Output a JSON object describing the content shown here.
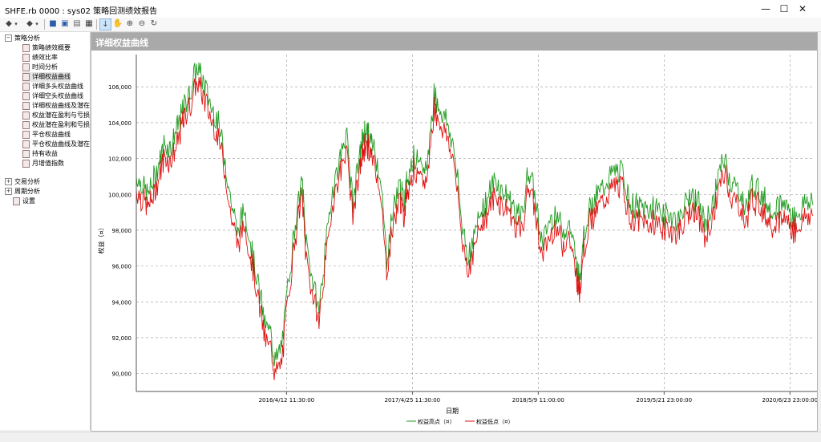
{
  "window": {
    "title": "SHFE.rb 0000 : sys02 策略回测绩效报告",
    "minimize": "—",
    "maximize": "☐",
    "close": "✕"
  },
  "toolbar": {
    "icons": [
      "back-arrow-icon",
      "forward-arrow-icon",
      "save-icon",
      "print-preview-icon",
      "print-icon",
      "export-icon",
      "pointer-icon",
      "hand-pan-icon",
      "zoom-in-icon",
      "zoom-out-icon",
      "refresh-icon"
    ]
  },
  "tree": {
    "groups": [
      {
        "label": "策略分析",
        "expanded": true,
        "children": [
          "策略绩效概要",
          "绩效比率",
          "时间分析",
          "详细权益曲线",
          "详细多头权益曲线",
          "详细空头权益曲线",
          "详细权益曲线及潜在",
          "权益潜在盈利与亏损",
          "权益潜在盈利和亏损",
          "平仓权益曲线",
          "平仓权益曲线及潜在",
          "持有收益",
          "月增值指数"
        ]
      },
      {
        "label": "交易分析",
        "expanded": false
      },
      {
        "label": "周期分析",
        "expanded": false
      },
      {
        "label": "设置",
        "leaf": true
      }
    ],
    "selected": "详细权益曲线"
  },
  "panel": {
    "title": "详细权益曲线"
  },
  "chart_data": {
    "type": "line",
    "ylabel": "权益（¤）",
    "xlabel": "日期",
    "ylim": [
      89000,
      107800
    ],
    "yticks": [
      "106,000",
      "104,000",
      "102,000",
      "100,000",
      "98,000",
      "96,000",
      "94,000",
      "92,000",
      "90,000"
    ],
    "ytick_values": [
      106000,
      104000,
      102000,
      100000,
      98000,
      96000,
      94000,
      92000,
      90000
    ],
    "xticks": [
      "2016/4/12 11:30:00",
      "2017/4/25 11:30:00",
      "2018/5/9 11:00:00",
      "2019/5/21 23:00:00",
      "2020/6/23 23:00:00"
    ],
    "xtick_positions": [
      0.243,
      0.486,
      0.729,
      0.971,
      1.214
    ],
    "grid": true,
    "legend_position": "bottom-center",
    "series": [
      {
        "name": "权益高点（¤）",
        "color": "#1f9a1f"
      },
      {
        "name": "权益低点（¤）",
        "color": "#e01010"
      }
    ],
    "x": [
      0,
      0.008,
      0.017,
      0.025,
      0.033,
      0.042,
      0.05,
      0.058,
      0.065,
      0.072,
      0.08,
      0.09,
      0.1,
      0.11,
      0.12,
      0.13,
      0.14,
      0.15,
      0.16,
      0.17,
      0.18,
      0.19,
      0.2,
      0.205,
      0.215,
      0.225,
      0.235,
      0.245,
      0.25,
      0.26,
      0.27,
      0.28,
      0.29,
      0.3,
      0.31,
      0.32,
      0.33,
      0.335,
      0.34,
      0.345,
      0.35,
      0.36,
      0.37,
      0.38,
      0.39,
      0.395,
      0.4,
      0.41,
      0.42,
      0.43,
      0.44,
      0.45,
      0.46,
      0.47,
      0.48,
      0.49,
      0.5,
      0.51,
      0.52,
      0.53,
      0.54,
      0.55,
      0.56,
      0.57,
      0.58,
      0.59,
      0.6,
      0.61,
      0.62,
      0.63,
      0.64,
      0.65,
      0.655,
      0.66,
      0.67,
      0.68,
      0.69,
      0.7,
      0.71,
      0.72,
      0.73,
      0.74,
      0.75,
      0.76,
      0.77,
      0.78,
      0.79,
      0.8,
      0.81,
      0.82,
      0.83,
      0.84,
      0.85,
      0.86,
      0.87,
      0.88,
      0.89,
      0.9,
      0.91,
      0.92,
      0.93,
      0.94,
      0.95,
      0.96,
      0.97,
      0.98,
      0.99,
      1.0
    ],
    "y": [
      100600,
      100200,
      99600,
      100300,
      101300,
      102500,
      102200,
      103000,
      103800,
      104700,
      105400,
      106700,
      105800,
      104600,
      103700,
      101900,
      99200,
      97500,
      98800,
      96700,
      94600,
      92400,
      91600,
      90200,
      91100,
      94800,
      98100,
      100400,
      97300,
      94900,
      93200,
      96700,
      99900,
      101400,
      103100,
      99200,
      101700,
      102800,
      103300,
      102600,
      102400,
      100800,
      96100,
      98900,
      100200,
      99000,
      100600,
      101800,
      100900,
      101300,
      105200,
      104300,
      103600,
      102000,
      98400,
      96200,
      97300,
      98900,
      99400,
      100400,
      99800,
      99500,
      98700,
      98300,
      101100,
      99300,
      96900,
      98000,
      98700,
      97600,
      98000,
      95900,
      94900,
      97100,
      98900,
      99400,
      100000,
      100600,
      100900,
      100700,
      99000,
      98900,
      98800,
      98700,
      98900,
      98400,
      98500,
      98100,
      98900,
      99700,
      99100,
      98000,
      98700,
      100600,
      101600,
      100100,
      99900,
      98700,
      100200,
      99800,
      99200,
      98800,
      98900,
      99100,
      98300,
      98600,
      99200,
      99100
    ]
  },
  "colors": {
    "header_bg": "#a9a9a9",
    "high": "#1f9a1f",
    "low": "#e01010",
    "grid": "#9a9a9a"
  }
}
